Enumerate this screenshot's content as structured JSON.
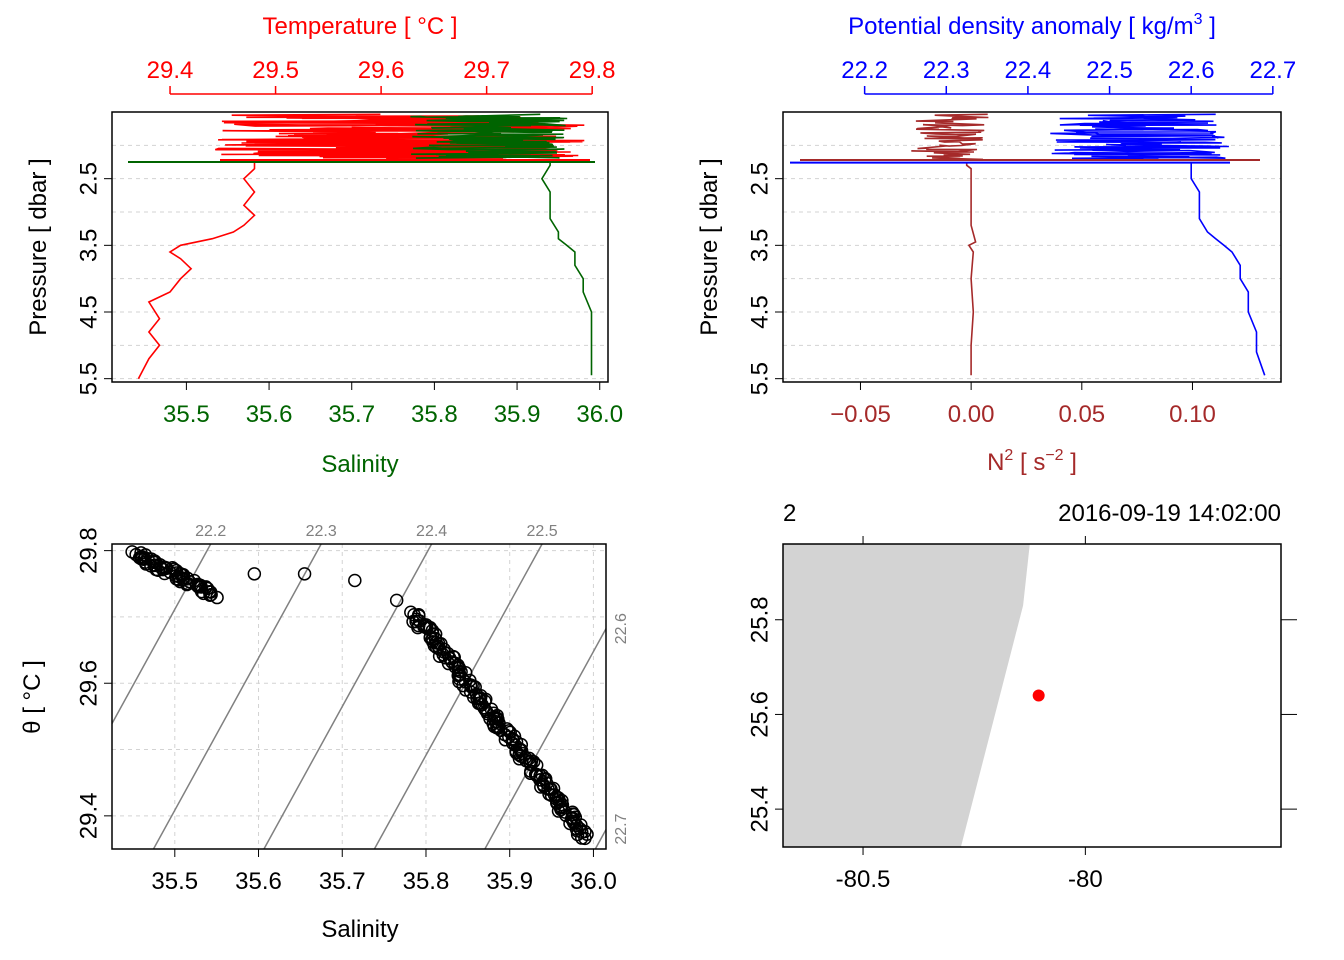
{
  "chart_data": [
    {
      "type": "line",
      "panel": "profile-temperature-salinity",
      "y_axis": {
        "label": "Pressure [ dbar ]",
        "ticks": [
          "2.5",
          "3.5",
          "4.5",
          "5.5"
        ],
        "grid_values": [
          1.5,
          2.0,
          2.5,
          3.0,
          3.5,
          4.0,
          4.5,
          5.0,
          5.5
        ],
        "range": [
          1.5,
          5.55
        ],
        "reversed": true
      },
      "top_axis": {
        "title": "Temperature [ °C ]",
        "ticks": [
          "29.4",
          "29.5",
          "29.6",
          "29.7",
          "29.8"
        ],
        "tick_values": [
          29.4,
          29.5,
          29.6,
          29.7,
          29.8
        ],
        "range": [
          29.345,
          29.815
        ],
        "color": "#ff0000"
      },
      "bottom_axis": {
        "title": "Salinity",
        "ticks": [
          "35.5",
          "35.6",
          "35.7",
          "35.8",
          "35.9",
          "36.0"
        ],
        "tick_values": [
          35.5,
          35.6,
          35.7,
          35.8,
          35.9,
          36.0
        ],
        "range": [
          35.41,
          36.01
        ],
        "color": "#006400"
      },
      "series": [
        {
          "name": "Temperature",
          "color": "#ff0000",
          "p": [
            5.5,
            5.2,
            5.0,
            4.8,
            4.6,
            4.35,
            4.2,
            4.0,
            3.85,
            3.7,
            3.6,
            3.5,
            3.4,
            3.3,
            3.2,
            3.05,
            2.9,
            2.7,
            2.5,
            2.35,
            2.25
          ],
          "t": [
            29.37,
            29.38,
            29.39,
            29.38,
            29.39,
            29.38,
            29.4,
            29.41,
            29.42,
            29.41,
            29.4,
            29.41,
            29.44,
            29.46,
            29.47,
            29.48,
            29.47,
            29.48,
            29.47,
            29.48,
            29.48
          ]
        },
        {
          "name": "Salinity",
          "color": "#006400",
          "p": [
            5.45,
            5.1,
            4.8,
            4.5,
            4.2,
            4.0,
            3.8,
            3.6,
            3.5,
            3.4,
            3.3,
            3.1,
            2.9,
            2.7,
            2.5,
            2.3,
            2.25
          ],
          "s": [
            35.99,
            35.99,
            35.99,
            35.99,
            35.98,
            35.98,
            35.97,
            35.97,
            35.96,
            35.95,
            35.95,
            35.94,
            35.94,
            35.94,
            35.93,
            35.94,
            35.94
          ]
        }
      ]
    },
    {
      "type": "line",
      "panel": "profile-density-n2",
      "y_axis": {
        "label": "Pressure [ dbar ]",
        "ticks": [
          "2.5",
          "3.5",
          "4.5",
          "5.5"
        ],
        "grid_values": [
          1.5,
          2.0,
          2.5,
          3.0,
          3.5,
          4.0,
          4.5,
          5.0,
          5.5
        ],
        "range": [
          1.5,
          5.55
        ],
        "reversed": true
      },
      "top_axis": {
        "title": "Potential density anomaly [ kg/m",
        "title_sup": "3",
        "title_end": " ]",
        "ticks": [
          "22.2",
          "22.3",
          "22.4",
          "22.5",
          "22.6",
          "22.7"
        ],
        "tick_values": [
          22.2,
          22.3,
          22.4,
          22.5,
          22.6,
          22.7
        ],
        "range": [
          22.1,
          22.71
        ],
        "color": "#0000ff"
      },
      "bottom_axis": {
        "title": "N",
        "title_sup": "2",
        "title_mid": " [ s",
        "title_sup2": "−2",
        "title_end": " ]",
        "ticks": [
          "−0.05",
          "0.00",
          "0.05",
          "0.10"
        ],
        "tick_values": [
          -0.05,
          0.0,
          0.05,
          0.1
        ],
        "range": [
          -0.085,
          0.14
        ],
        "color": "#a52a2a"
      },
      "series": [
        {
          "name": "Potential density anomaly",
          "color": "#0000ff",
          "p": [
            5.45,
            5.1,
            4.8,
            4.5,
            4.2,
            4.0,
            3.8,
            3.6,
            3.5,
            3.4,
            3.3,
            3.1,
            2.9,
            2.7,
            2.5,
            2.3,
            2.25
          ],
          "sigma": [
            22.69,
            22.68,
            22.68,
            22.67,
            22.67,
            22.66,
            22.66,
            22.65,
            22.64,
            22.63,
            22.62,
            22.61,
            22.61,
            22.61,
            22.6,
            22.6,
            22.6
          ]
        },
        {
          "name": "N2",
          "color": "#a52a2a",
          "p": [
            5.45,
            5.0,
            4.5,
            4.0,
            3.6,
            3.5,
            3.45,
            3.2,
            2.8,
            2.5,
            2.35,
            2.3,
            2.25
          ],
          "n2": [
            0.0,
            0.0,
            0.001,
            0.0,
            0.001,
            -0.001,
            0.002,
            0.0,
            0.0,
            0.0,
            0.0,
            -0.002,
            -0.002
          ]
        }
      ]
    },
    {
      "type": "scatter",
      "panel": "ts-diagram",
      "x_axis": {
        "label": "Salinity",
        "ticks": [
          "35.5",
          "35.6",
          "35.7",
          "35.8",
          "35.9",
          "36.0"
        ],
        "tick_values": [
          35.5,
          35.6,
          35.7,
          35.8,
          35.9,
          36.0
        ],
        "range": [
          35.425,
          36.015
        ]
      },
      "y_axis": {
        "label": "θ [ °C ]",
        "ticks": [
          "29.4",
          "29.6",
          "29.8"
        ],
        "tick_values": [
          29.4,
          29.6,
          29.8
        ],
        "grid_values": [
          29.4,
          29.5,
          29.6,
          29.7,
          29.8
        ],
        "range": [
          29.35,
          29.81
        ]
      },
      "isopycnals": {
        "color": "#808080",
        "labels": [
          "22.2",
          "22.3",
          "22.4",
          "22.5",
          "22.6",
          "22.7"
        ],
        "values": [
          22.2,
          22.3,
          22.4,
          22.5,
          22.6,
          22.7
        ]
      },
      "clusters": [
        {
          "s0": 35.455,
          "t0": 29.795,
          "s1": 35.545,
          "t1": 29.735,
          "n": 70,
          "spread": 0.006
        },
        {
          "s0": 35.785,
          "t0": 29.705,
          "s1": 35.99,
          "t1": 29.37,
          "n": 190,
          "spread": 0.006
        }
      ],
      "points": [
        [
          35.595,
          29.765
        ],
        [
          35.655,
          29.765
        ],
        [
          35.715,
          29.755
        ],
        [
          35.765,
          29.725
        ]
      ]
    },
    {
      "type": "map",
      "panel": "station-map",
      "title_left": "2",
      "title_right": "2016-09-19 14:02:00",
      "x_axis": {
        "ticks": [
          "-80.5",
          "-80"
        ],
        "tick_values": [
          -80.5,
          -80.0
        ],
        "range": [
          -80.68,
          -79.56
        ]
      },
      "y_axis": {
        "ticks": [
          "25.4",
          "25.6",
          "25.8"
        ],
        "tick_values": [
          25.4,
          25.6,
          25.8
        ],
        "range": [
          25.32,
          25.96
        ]
      },
      "land": {
        "color": "#d3d3d3",
        "polygon": [
          [
            -80.68,
            25.96
          ],
          [
            -80.125,
            25.96
          ],
          [
            -80.14,
            25.83
          ],
          [
            -80.28,
            25.32
          ],
          [
            -80.68,
            25.32
          ]
        ]
      },
      "station": {
        "lon": -80.105,
        "lat": 25.64,
        "color": "#ff0000"
      }
    }
  ]
}
